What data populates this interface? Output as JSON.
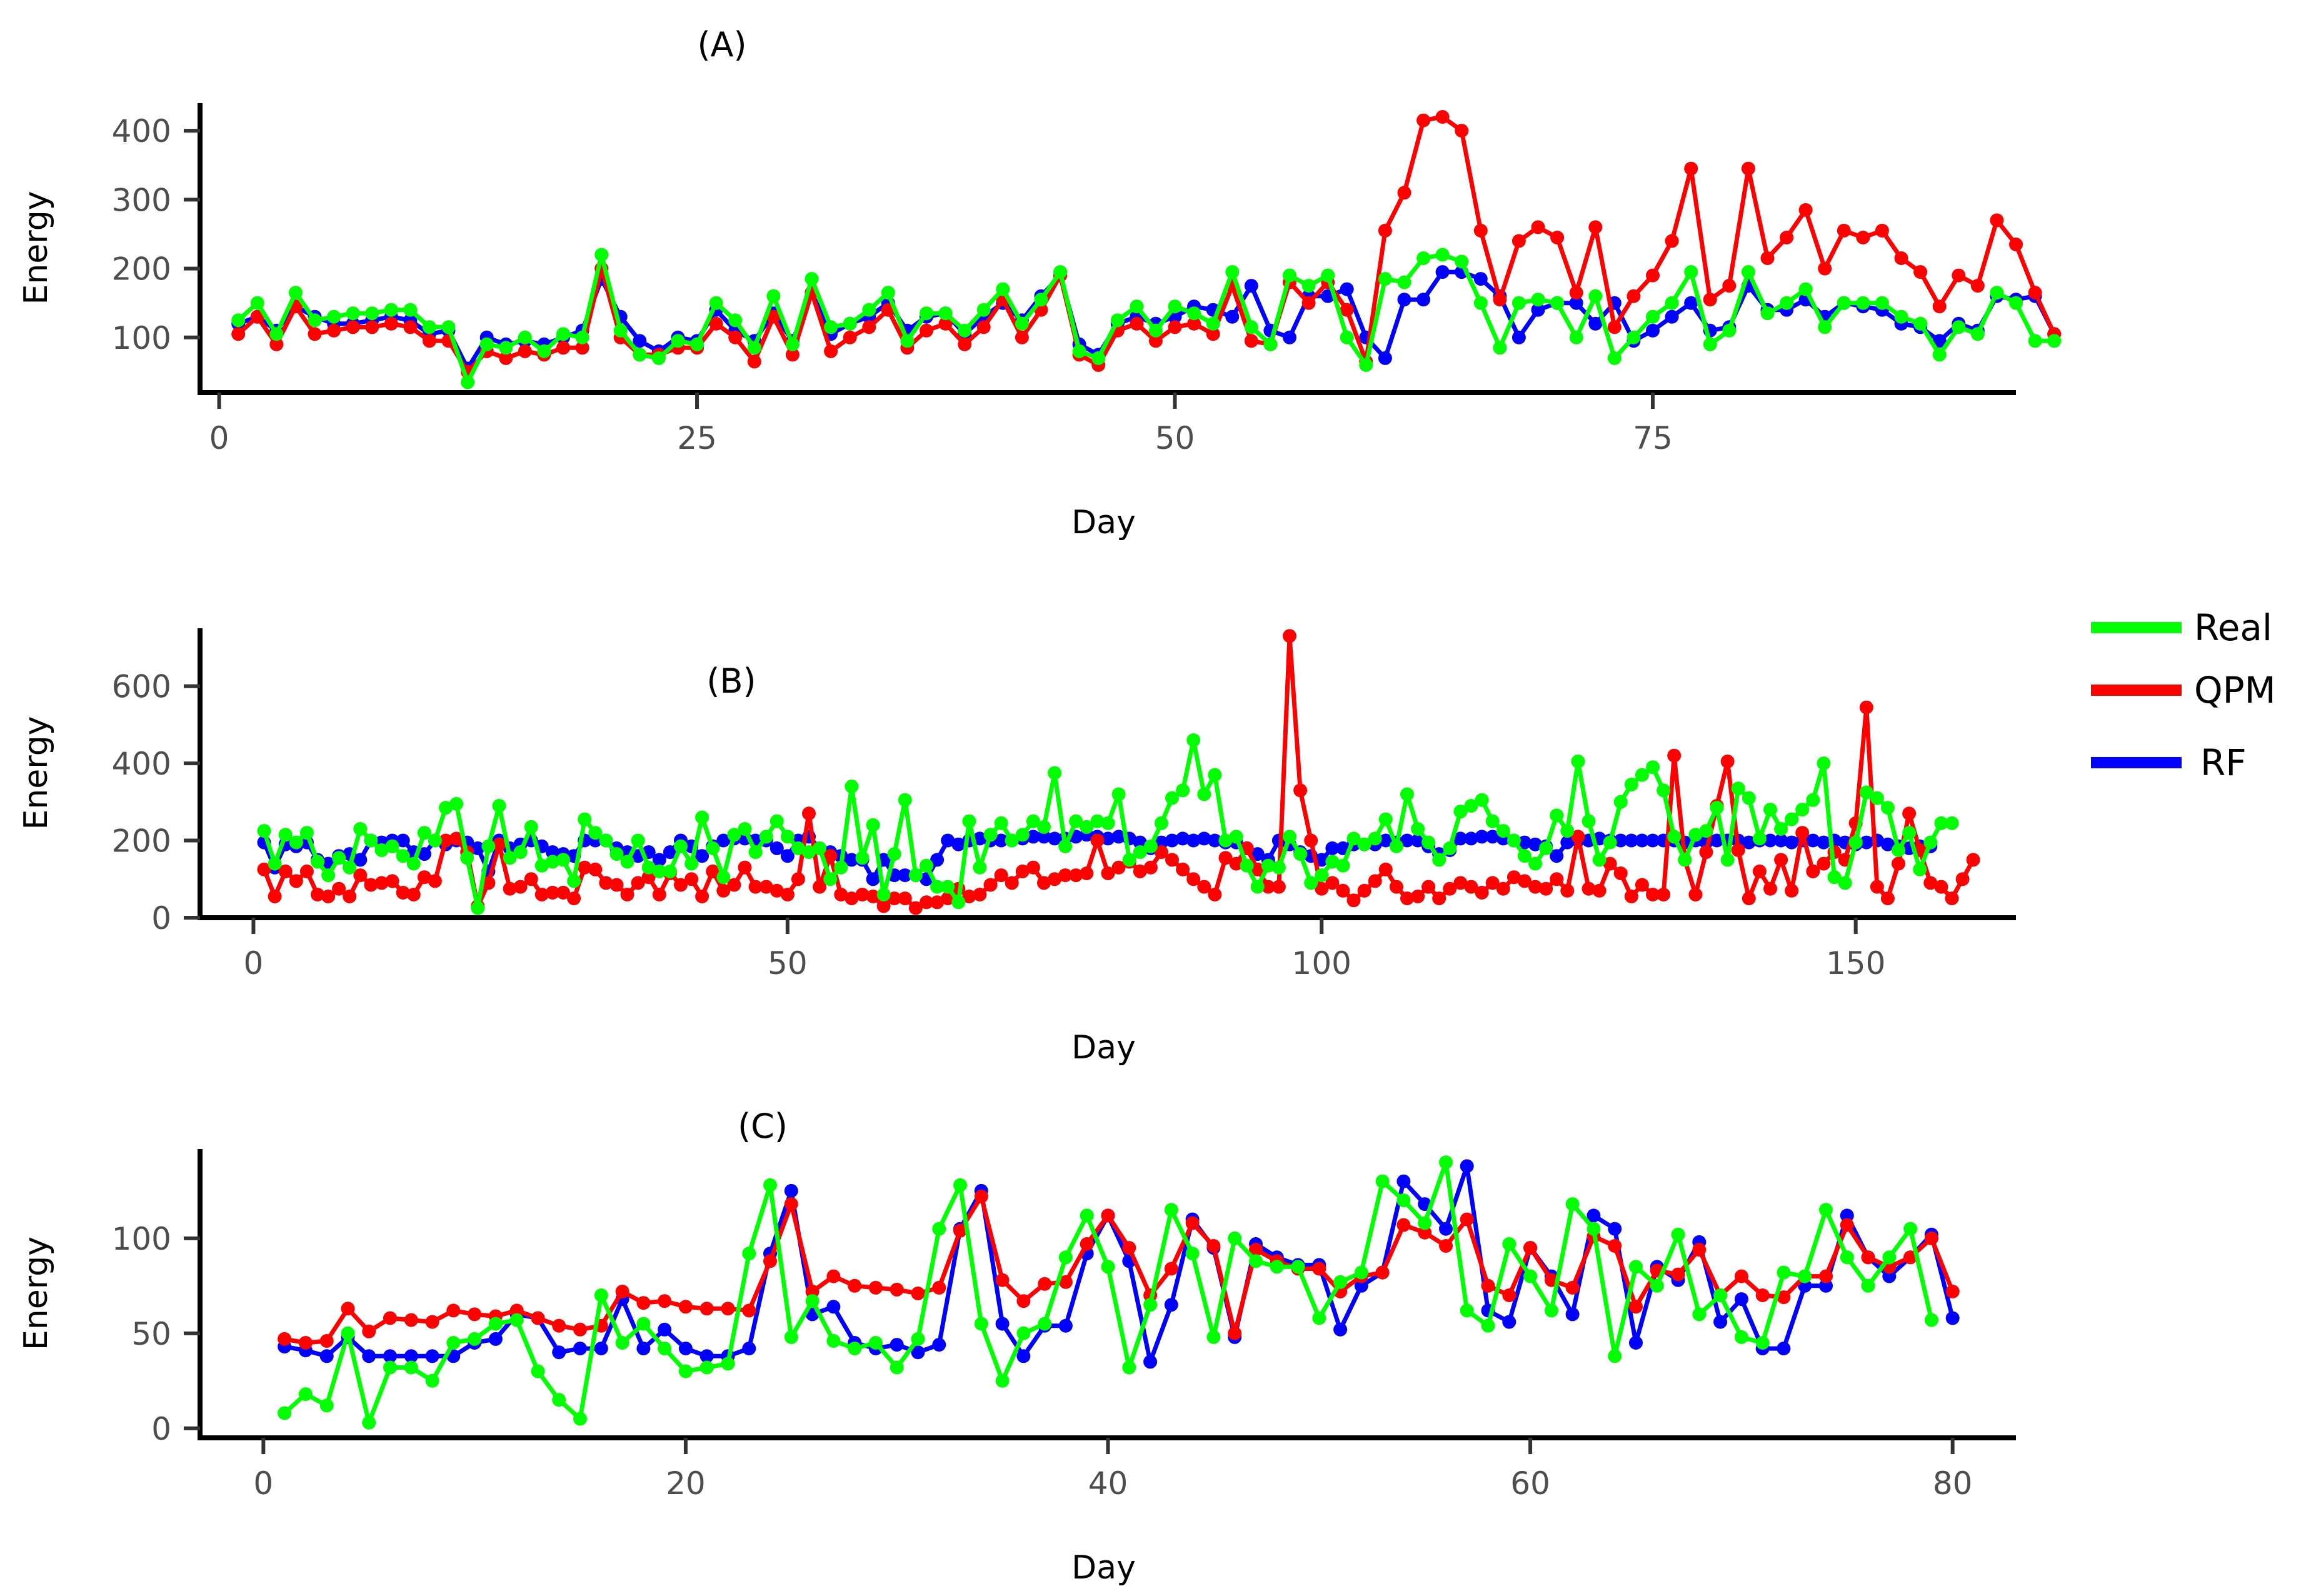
{
  "legend": {
    "items": [
      {
        "name": "Real",
        "color": "#00ff00"
      },
      {
        "name": "QPM",
        "color": "#ff0000"
      },
      {
        "name": "RF",
        "color": "#0000ff"
      }
    ]
  },
  "chart_data": [
    {
      "type": "line",
      "title": "(A)",
      "xlabel": "Day",
      "ylabel": "Energy",
      "xlim": [
        -1,
        94
      ],
      "ylim": [
        20,
        440
      ],
      "xticks": [
        0,
        25,
        50,
        75
      ],
      "yticks": [
        100,
        200,
        300,
        400
      ],
      "x_start": 1,
      "series": [
        {
          "name": "RF",
          "color": "#0000ff",
          "values": [
            120,
            130,
            110,
            145,
            130,
            120,
            120,
            125,
            130,
            125,
            105,
            110,
            55,
            100,
            90,
            95,
            90,
            100,
            110,
            185,
            130,
            95,
            80,
            100,
            95,
            140,
            110,
            95,
            135,
            95,
            165,
            105,
            120,
            130,
            150,
            110,
            130,
            135,
            105,
            130,
            150,
            125,
            160,
            190,
            90,
            75,
            120,
            130,
            120,
            130,
            145,
            140,
            130,
            175,
            110,
            100,
            160,
            160,
            170,
            100,
            70,
            155,
            155,
            195,
            195,
            185,
            160,
            100,
            140,
            150,
            150,
            120,
            150,
            95,
            110,
            130,
            150,
            110,
            115,
            175,
            140,
            140,
            155,
            130,
            150,
            145,
            140,
            120,
            115,
            95,
            120,
            110,
            160,
            155,
            160,
            105
          ]
        },
        {
          "name": "QPM",
          "color": "#ff0000",
          "values": [
            105,
            130,
            90,
            145,
            105,
            110,
            115,
            115,
            120,
            115,
            95,
            95,
            50,
            80,
            70,
            80,
            75,
            85,
            85,
            200,
            100,
            75,
            75,
            85,
            85,
            120,
            100,
            65,
            130,
            75,
            165,
            80,
            100,
            115,
            140,
            85,
            110,
            120,
            90,
            115,
            155,
            100,
            140,
            190,
            75,
            60,
            110,
            120,
            95,
            115,
            120,
            105,
            175,
            95,
            90,
            180,
            150,
            180,
            140,
            65,
            255,
            310,
            415,
            420,
            400,
            255,
            155,
            240,
            260,
            245,
            165,
            260,
            115,
            160,
            190,
            240,
            345,
            155,
            175,
            345,
            215,
            245,
            285,
            200,
            255,
            245,
            255,
            215,
            195,
            145,
            190,
            175,
            270,
            235,
            165,
            105
          ]
        },
        {
          "name": "Real",
          "color": "#00ff00",
          "values": [
            125,
            150,
            105,
            165,
            125,
            130,
            135,
            135,
            140,
            140,
            115,
            115,
            35,
            90,
            85,
            100,
            80,
            105,
            100,
            220,
            110,
            75,
            70,
            95,
            90,
            150,
            125,
            85,
            160,
            90,
            185,
            115,
            120,
            140,
            165,
            95,
            135,
            135,
            110,
            140,
            170,
            120,
            155,
            195,
            80,
            70,
            125,
            145,
            110,
            145,
            135,
            120,
            195,
            115,
            90,
            190,
            175,
            190,
            100,
            60,
            185,
            180,
            215,
            220,
            210,
            150,
            85,
            150,
            155,
            150,
            100,
            160,
            70,
            100,
            130,
            150,
            195,
            90,
            110,
            195,
            135,
            150,
            170,
            115,
            150,
            150,
            150,
            130,
            120,
            75,
            115,
            105,
            165,
            150,
            95,
            95
          ]
        }
      ]
    },
    {
      "type": "line",
      "title": "(B)",
      "xlabel": "Day",
      "ylabel": "Energy",
      "xlim": [
        -5,
        165
      ],
      "ylim": [
        0,
        750
      ],
      "xticks": [
        0,
        50,
        100,
        150
      ],
      "yticks": [
        0,
        200,
        400,
        600
      ],
      "x_start": 1,
      "series": [
        {
          "name": "RF",
          "color": "#0000ff",
          "values": [
            195,
            130,
            190,
            185,
            195,
            150,
            140,
            160,
            165,
            150,
            200,
            195,
            200,
            200,
            170,
            165,
            200,
            190,
            200,
            195,
            180,
            120,
            200,
            180,
            190,
            200,
            185,
            170,
            165,
            160,
            200,
            200,
            200,
            180,
            170,
            160,
            170,
            150,
            170,
            200,
            185,
            160,
            185,
            200,
            205,
            205,
            200,
            200,
            180,
            160,
            200,
            210,
            180,
            170,
            160,
            150,
            150,
            100,
            150,
            110,
            110,
            110,
            100,
            150,
            200,
            190,
            200,
            205,
            200,
            200,
            200,
            205,
            210,
            210,
            205,
            205,
            210,
            215,
            210,
            205,
            210,
            205,
            195,
            180,
            195,
            200,
            205,
            200,
            205,
            200,
            195,
            195,
            180,
            165,
            150,
            200,
            190,
            170,
            160,
            150,
            180,
            180,
            190,
            190,
            190,
            200,
            195,
            200,
            200,
            185,
            165,
            175,
            205,
            205,
            210,
            210,
            205,
            200,
            195,
            190,
            185,
            160,
            195,
            200,
            200,
            205,
            200,
            200,
            200,
            200,
            200,
            200,
            200,
            195,
            200,
            195,
            200,
            200,
            200,
            195,
            200,
            200,
            200,
            195,
            200,
            200,
            195,
            200,
            195,
            190,
            195,
            200,
            190,
            185,
            180,
            185,
            185
          ]
        },
        {
          "name": "QPM",
          "color": "#ff0000",
          "values": [
            125,
            55,
            120,
            95,
            120,
            60,
            55,
            75,
            55,
            110,
            85,
            90,
            95,
            65,
            60,
            105,
            95,
            200,
            205,
            170,
            30,
            90,
            190,
            75,
            80,
            100,
            60,
            65,
            65,
            50,
            130,
            125,
            90,
            85,
            60,
            90,
            105,
            60,
            115,
            85,
            100,
            55,
            120,
            70,
            85,
            130,
            80,
            80,
            70,
            60,
            100,
            270,
            80,
            160,
            60,
            50,
            60,
            55,
            30,
            50,
            50,
            25,
            40,
            40,
            50,
            75,
            55,
            60,
            85,
            110,
            90,
            120,
            130,
            90,
            100,
            110,
            110,
            115,
            200,
            115,
            130,
            145,
            120,
            130,
            170,
            150,
            125,
            100,
            80,
            60,
            155,
            140,
            180,
            125,
            80,
            80,
            730,
            330,
            200,
            75,
            90,
            70,
            45,
            70,
            95,
            125,
            80,
            50,
            55,
            80,
            50,
            75,
            90,
            80,
            65,
            90,
            75,
            105,
            95,
            80,
            75,
            100,
            70,
            210,
            75,
            70,
            140,
            115,
            55,
            85,
            60,
            60,
            420,
            150,
            60,
            170,
            290,
            405,
            175,
            50,
            120,
            75,
            150,
            70,
            220,
            120,
            140,
            170,
            150,
            245,
            545,
            80,
            50,
            140,
            270,
            175,
            90,
            80,
            50,
            100,
            150
          ]
        },
        {
          "name": "Real",
          "color": "#00ff00",
          "values": [
            225,
            140,
            215,
            195,
            220,
            145,
            110,
            155,
            130,
            230,
            200,
            175,
            185,
            160,
            140,
            220,
            200,
            285,
            295,
            155,
            25,
            185,
            290,
            155,
            170,
            235,
            135,
            145,
            150,
            95,
            255,
            220,
            200,
            165,
            145,
            200,
            130,
            120,
            120,
            185,
            140,
            260,
            180,
            105,
            215,
            230,
            170,
            210,
            250,
            210,
            180,
            170,
            180,
            100,
            130,
            340,
            155,
            240,
            60,
            165,
            305,
            110,
            135,
            80,
            80,
            40,
            250,
            130,
            215,
            245,
            200,
            215,
            250,
            235,
            375,
            185,
            250,
            235,
            250,
            245,
            320,
            150,
            170,
            185,
            245,
            310,
            330,
            460,
            320,
            370,
            200,
            210,
            135,
            80,
            135,
            130,
            210,
            165,
            90,
            110,
            145,
            135,
            205,
            190,
            205,
            255,
            185,
            320,
            230,
            195,
            150,
            180,
            275,
            290,
            305,
            250,
            225,
            200,
            160,
            140,
            180,
            265,
            225,
            405,
            250,
            150,
            195,
            300,
            345,
            370,
            390,
            330,
            210,
            150,
            215,
            225,
            285,
            150,
            335,
            310,
            205,
            280,
            230,
            255,
            280,
            305,
            400,
            105,
            90,
            195,
            325,
            310,
            285,
            175,
            220,
            125,
            195,
            245,
            245
          ]
        }
      ]
    },
    {
      "type": "line",
      "title": "(C)",
      "xlabel": "Day",
      "ylabel": "Energy",
      "xlim": [
        -3,
        83
      ],
      "ylim": [
        -5,
        147
      ],
      "xticks": [
        0,
        20,
        40,
        60,
        80
      ],
      "yticks": [
        0,
        50,
        100
      ],
      "x_start": 1,
      "series": [
        {
          "name": "RF",
          "color": "#0000ff",
          "values": [
            43,
            41,
            38,
            48,
            38,
            38,
            38,
            38,
            38,
            45,
            47,
            60,
            58,
            40,
            42,
            42,
            68,
            42,
            52,
            42,
            38,
            38,
            42,
            92,
            125,
            60,
            64,
            45,
            42,
            44,
            40,
            44,
            105,
            125,
            55,
            38,
            54,
            54,
            92,
            112,
            88,
            35,
            65,
            110,
            95,
            48,
            97,
            90,
            86,
            86,
            52,
            75,
            82,
            130,
            118,
            105,
            138,
            62,
            56,
            95,
            80,
            60,
            112,
            105,
            45,
            85,
            78,
            98,
            56,
            68,
            42,
            42,
            75,
            75,
            112,
            90,
            80,
            90,
            102,
            58
          ]
        },
        {
          "name": "QPM",
          "color": "#ff0000",
          "values": [
            47,
            45,
            46,
            63,
            51,
            58,
            57,
            56,
            62,
            60,
            59,
            62,
            58,
            54,
            52,
            54,
            72,
            66,
            67,
            64,
            63,
            63,
            62,
            88,
            118,
            72,
            80,
            75,
            74,
            73,
            71,
            74,
            104,
            122,
            78,
            67,
            76,
            77,
            97,
            112,
            95,
            70,
            84,
            108,
            96,
            50,
            94,
            88,
            84,
            84,
            72,
            80,
            82,
            107,
            103,
            96,
            110,
            75,
            70,
            95,
            78,
            74,
            101,
            96,
            64,
            83,
            81,
            94,
            70,
            80,
            70,
            69,
            80,
            80,
            107,
            90,
            85,
            90,
            100,
            72
          ]
        },
        {
          "name": "Real",
          "color": "#00ff00",
          "values": [
            8,
            18,
            12,
            50,
            3,
            32,
            32,
            25,
            45,
            47,
            55,
            57,
            30,
            15,
            5,
            70,
            45,
            55,
            42,
            30,
            32,
            34,
            92,
            128,
            48,
            67,
            46,
            42,
            45,
            32,
            47,
            105,
            128,
            55,
            25,
            50,
            55,
            90,
            112,
            85,
            32,
            65,
            115,
            92,
            48,
            100,
            88,
            85,
            85,
            58,
            77,
            82,
            130,
            120,
            108,
            140,
            62,
            54,
            97,
            80,
            62,
            118,
            105,
            38,
            85,
            75,
            102,
            60,
            70,
            48,
            45,
            82,
            80,
            115,
            90,
            75,
            90,
            105,
            57
          ]
        }
      ]
    }
  ]
}
